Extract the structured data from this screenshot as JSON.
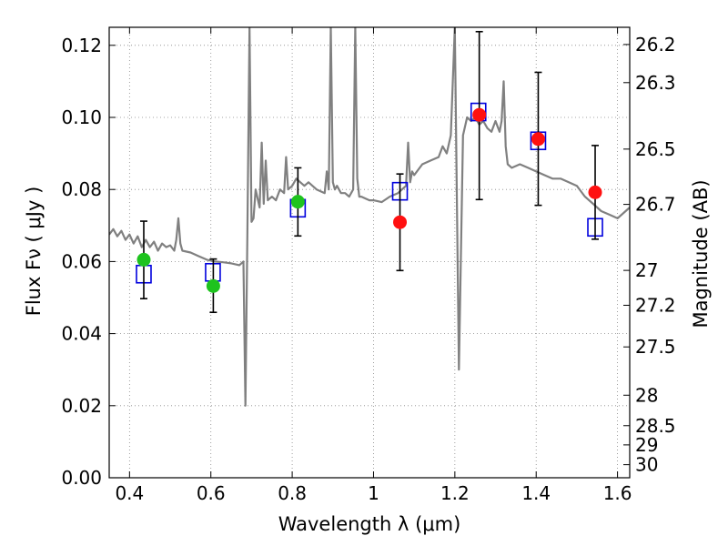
{
  "chart_data": {
    "type": "scatter",
    "xlabel": "Wavelength  λ (μm)",
    "ylabel": "Flux  Fν  ( μJy )",
    "y2label": "Magnitude (AB)",
    "xlim": [
      0.35,
      1.63
    ],
    "ylim": [
      0.0,
      0.125
    ],
    "x_ticks": [
      0.4,
      0.6,
      0.8,
      1.0,
      1.2,
      1.4,
      1.6
    ],
    "x_tick_labels": [
      "0.4",
      "0.6",
      "0.8",
      "1",
      "1.2",
      "1.4",
      "1.6"
    ],
    "y_ticks": [
      0.0,
      0.02,
      0.04,
      0.06,
      0.08,
      0.1,
      0.12
    ],
    "y_tick_labels": [
      "0.00",
      "0.02",
      "0.04",
      "0.06",
      "0.08",
      "0.10",
      "0.12"
    ],
    "mag_ticks": [
      26.2,
      26.3,
      26.5,
      26.7,
      27,
      27.2,
      27.5,
      28,
      28.5,
      29,
      30
    ],
    "mag_tick_labels": [
      "26.2",
      "26.3",
      "26.5",
      "26.7",
      "27",
      "27.2",
      "27.5",
      "28",
      "28.5",
      "29",
      "30"
    ],
    "grid": true,
    "colors": {
      "model": "#808080",
      "detection": "#1ec31e",
      "upper": "#ff1010",
      "synthetic": "#0000dd",
      "errorbar": "#000000"
    },
    "observed": [
      {
        "x": 0.435,
        "y": 0.0605,
        "err": [
          0.0497,
          0.0712
        ],
        "marker": "green"
      },
      {
        "x": 0.606,
        "y": 0.0532,
        "err": [
          0.0459,
          0.0607
        ],
        "marker": "green"
      },
      {
        "x": 0.814,
        "y": 0.0766,
        "err": [
          0.0671,
          0.086
        ],
        "marker": "green"
      },
      {
        "x": 1.065,
        "y": 0.0709,
        "err": [
          0.0575,
          0.0843
        ],
        "marker": "red"
      },
      {
        "x": 1.26,
        "y": 0.1007,
        "err": [
          0.0772,
          0.1238
        ],
        "marker": "red"
      },
      {
        "x": 1.405,
        "y": 0.094,
        "err": [
          0.0756,
          0.1125
        ],
        "marker": "red"
      },
      {
        "x": 1.545,
        "y": 0.0792,
        "err": [
          0.0662,
          0.0922
        ],
        "marker": "red"
      }
    ],
    "synthetic_photometry": [
      {
        "x": 0.435,
        "y": 0.0565
      },
      {
        "x": 0.605,
        "y": 0.057
      },
      {
        "x": 0.814,
        "y": 0.0748
      },
      {
        "x": 1.065,
        "y": 0.0795
      },
      {
        "x": 1.258,
        "y": 0.1015
      },
      {
        "x": 1.405,
        "y": 0.0935
      },
      {
        "x": 1.545,
        "y": 0.0695
      }
    ],
    "model_spectrum": {
      "x": [
        0.35,
        0.36,
        0.37,
        0.38,
        0.39,
        0.4,
        0.41,
        0.42,
        0.43,
        0.44,
        0.45,
        0.46,
        0.47,
        0.48,
        0.49,
        0.5,
        0.51,
        0.515,
        0.52,
        0.525,
        0.53,
        0.55,
        0.57,
        0.59,
        0.61,
        0.63,
        0.65,
        0.67,
        0.68,
        0.685,
        0.69,
        0.695,
        0.7,
        0.705,
        0.71,
        0.72,
        0.725,
        0.73,
        0.735,
        0.74,
        0.75,
        0.76,
        0.77,
        0.78,
        0.785,
        0.79,
        0.8,
        0.81,
        0.82,
        0.83,
        0.84,
        0.86,
        0.88,
        0.885,
        0.89,
        0.895,
        0.9,
        0.905,
        0.91,
        0.92,
        0.93,
        0.94,
        0.95,
        0.955,
        0.96,
        0.965,
        0.97,
        0.98,
        0.99,
        1.0,
        1.02,
        1.04,
        1.06,
        1.08,
        1.085,
        1.09,
        1.095,
        1.1,
        1.12,
        1.14,
        1.16,
        1.17,
        1.18,
        1.19,
        1.2,
        1.21,
        1.22,
        1.23,
        1.24,
        1.25,
        1.26,
        1.27,
        1.28,
        1.29,
        1.3,
        1.31,
        1.315,
        1.32,
        1.325,
        1.33,
        1.34,
        1.36,
        1.38,
        1.4,
        1.42,
        1.44,
        1.46,
        1.48,
        1.5,
        1.52,
        1.54,
        1.56,
        1.58,
        1.6,
        1.62,
        1.63
      ],
      "y": [
        0.0675,
        0.069,
        0.067,
        0.0685,
        0.066,
        0.0675,
        0.065,
        0.067,
        0.064,
        0.066,
        0.064,
        0.0655,
        0.063,
        0.065,
        0.064,
        0.0645,
        0.063,
        0.066,
        0.072,
        0.065,
        0.063,
        0.0625,
        0.0615,
        0.0605,
        0.06,
        0.0598,
        0.0595,
        0.059,
        0.06,
        0.02,
        0.069,
        0.125,
        0.071,
        0.072,
        0.08,
        0.075,
        0.093,
        0.076,
        0.088,
        0.077,
        0.078,
        0.077,
        0.08,
        0.079,
        0.089,
        0.08,
        0.081,
        0.083,
        0.082,
        0.081,
        0.082,
        0.08,
        0.079,
        0.085,
        0.08,
        0.125,
        0.082,
        0.08,
        0.081,
        0.079,
        0.079,
        0.078,
        0.08,
        0.125,
        0.083,
        0.078,
        0.078,
        0.0775,
        0.077,
        0.077,
        0.0765,
        0.078,
        0.079,
        0.081,
        0.093,
        0.082,
        0.085,
        0.084,
        0.087,
        0.088,
        0.089,
        0.092,
        0.09,
        0.095,
        0.125,
        0.03,
        0.095,
        0.1,
        0.099,
        0.1,
        0.098,
        0.099,
        0.097,
        0.096,
        0.099,
        0.096,
        0.099,
        0.11,
        0.092,
        0.087,
        0.086,
        0.087,
        0.086,
        0.085,
        0.084,
        0.083,
        0.083,
        0.082,
        0.081,
        0.078,
        0.076,
        0.074,
        0.073,
        0.072,
        0.074,
        0.075
      ]
    }
  }
}
